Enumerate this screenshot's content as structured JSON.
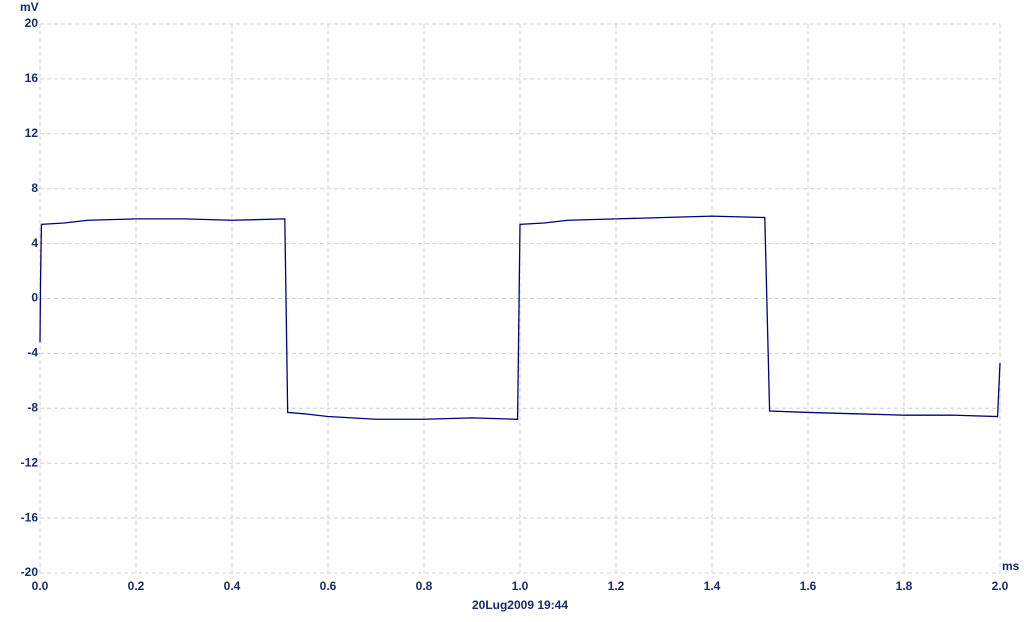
{
  "chart_data": {
    "type": "line",
    "y_label": "mV",
    "x_label": "ms",
    "footer": "20Lug2009  19:44",
    "xlim": [
      0,
      2
    ],
    "ylim": [
      -20,
      20
    ],
    "xticks": [
      {
        "value": 0,
        "label": "0.0"
      },
      0.2,
      0.4,
      0.6,
      0.8,
      {
        "value": 1,
        "label": "1.0"
      },
      1.2,
      1.4,
      1.6,
      1.8,
      {
        "value": 2,
        "label": "2.0"
      }
    ],
    "yticks": [
      -20,
      -16,
      -12,
      -8,
      -4,
      0,
      4,
      8,
      12,
      16,
      20
    ],
    "grid": true,
    "series": [
      {
        "color": "#000080",
        "x": [
          0,
          0.001,
          0.003,
          0.05,
          0.1,
          0.2,
          0.3,
          0.4,
          0.51,
          0.516,
          0.55,
          0.6,
          0.7,
          0.8,
          0.9,
          0.995,
          1.0,
          1.05,
          1.1,
          1.2,
          1.3,
          1.4,
          1.51,
          1.52,
          1.6,
          1.7,
          1.8,
          1.9,
          1.995,
          2.0
        ],
        "values": [
          -3.2,
          1,
          5.4,
          5.5,
          5.7,
          5.8,
          5.8,
          5.7,
          5.8,
          -8.3,
          -8.4,
          -8.6,
          -8.8,
          -8.8,
          -8.7,
          -8.8,
          5.4,
          5.5,
          5.7,
          5.8,
          5.9,
          6.0,
          5.9,
          -8.2,
          -8.3,
          -8.4,
          -8.5,
          -8.5,
          -8.6,
          -4.7
        ]
      }
    ]
  }
}
